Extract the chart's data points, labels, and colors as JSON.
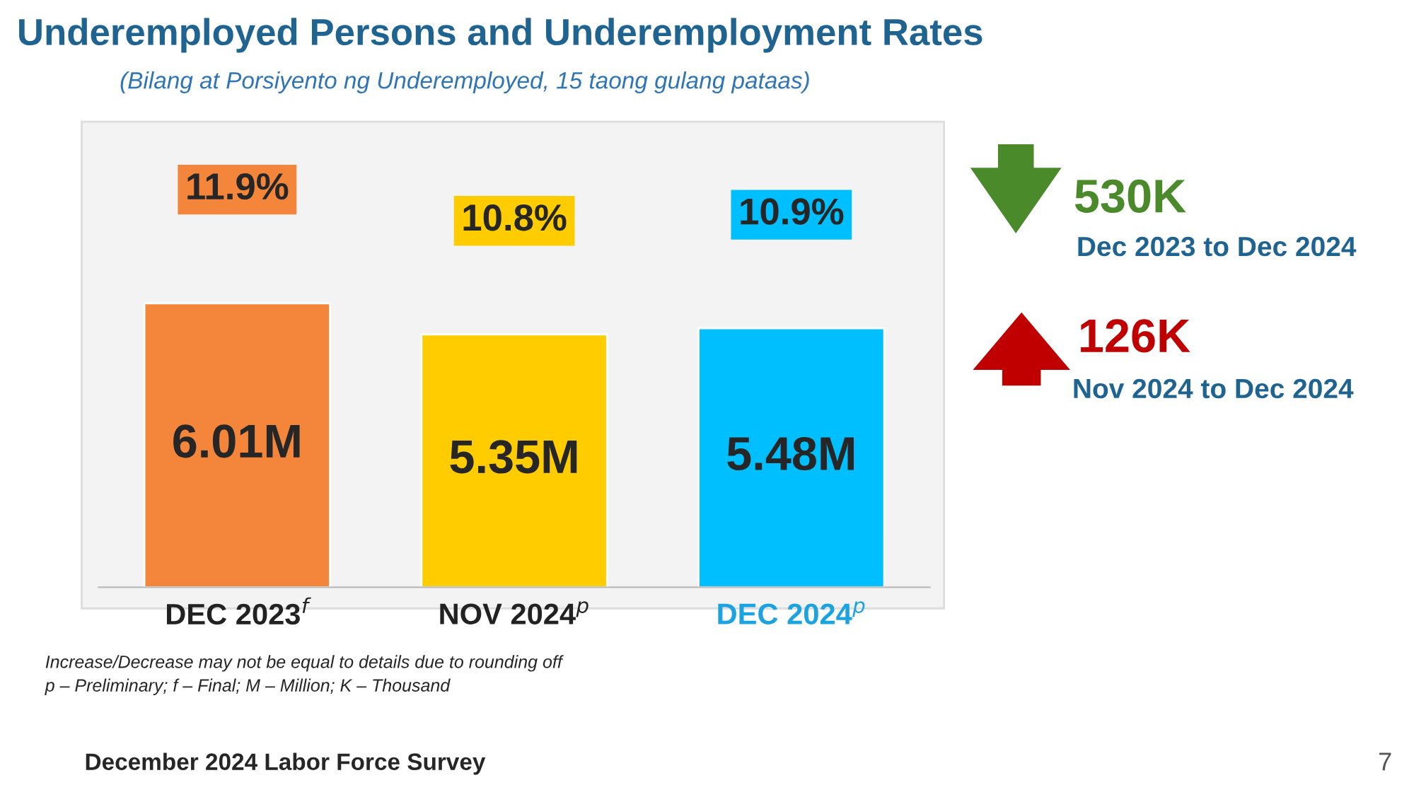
{
  "chart_data": {
    "type": "bar",
    "title": "Underemployed Persons and Underemployment Rates",
    "subtitle": "(Bilang at Porsiyento ng Underemployed, 15 taong gulang pataas)",
    "categories": [
      "DEC 2023$^{f}$",
      "NOV 2024$^{p}$",
      "DEC 2024$^{p}$"
    ],
    "values": [
      6.01,
      5.35,
      5.48
    ],
    "colors": [
      "#f4863b",
      "#ffcc00",
      "#00bfff"
    ],
    "value_labels": [
      "6.01M",
      "5.35M",
      "5.48M"
    ],
    "annotations": [
      "11.9%",
      "10.8%",
      "10.9%",
      "530K",
      "Dec 2023 to Dec 2024",
      "126K",
      "Nov 2024 to Dec 2024",
      "Increase/Decrease may not be equal to details due to rounding off",
      "p – Preliminary; f – Final; M – Million; K – Thousand",
      "December 2024 Labor Force Survey",
      "7"
    ],
    "orientation": "vertical"
  }
}
